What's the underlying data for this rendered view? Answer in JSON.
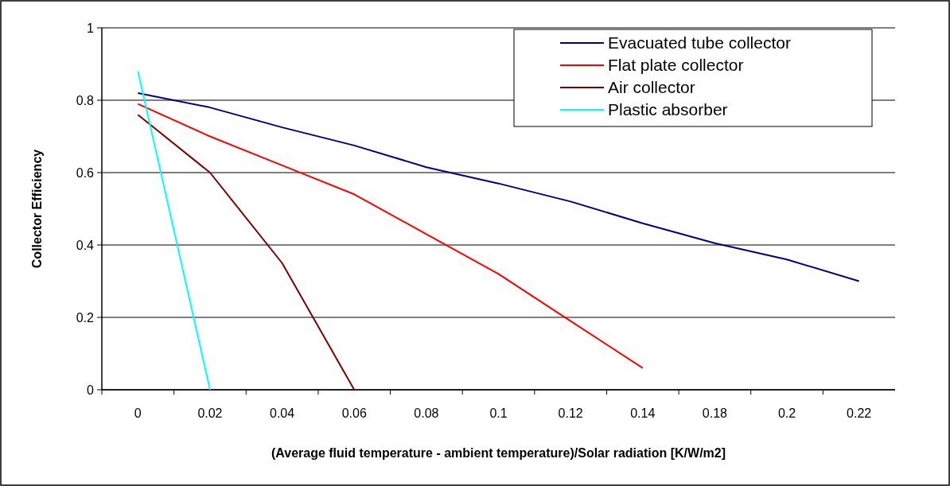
{
  "chart_data": {
    "type": "line",
    "xlabel": "(Average fluid temperature - ambient temperature)/Solar radiation [K/W/m2]",
    "ylabel": "Collector Efficiency",
    "categories": [
      "0",
      "0.02",
      "0.04",
      "0.06",
      "0.08",
      "0.1",
      "0.12",
      "0.14",
      "0.18",
      "0.2",
      "0.22"
    ],
    "series": [
      {
        "name": "Evacuated tube collector",
        "color": "#000080",
        "values": [
          0.82,
          0.78,
          0.725,
          0.675,
          0.615,
          0.57,
          0.52,
          0.46,
          0.405,
          0.36,
          0.3
        ]
      },
      {
        "name": "Flat plate collector",
        "color": "#ff0000",
        "values": [
          0.79,
          0.7,
          0.62,
          0.54,
          0.43,
          0.32,
          0.19,
          0.06,
          null,
          null,
          null
        ]
      },
      {
        "name": "Air collector",
        "color": "#800000",
        "values": [
          0.76,
          0.6,
          0.35,
          0,
          null,
          null,
          null,
          null,
          null,
          null,
          null
        ]
      },
      {
        "name": "Plastic absorber",
        "color": "#00ffff",
        "values": [
          0.88,
          0,
          null,
          null,
          null,
          null,
          null,
          null,
          null,
          null,
          null
        ]
      }
    ],
    "ylim": [
      0,
      1
    ],
    "yticks": [
      0,
      0.2,
      0.4,
      0.6,
      0.8,
      1
    ],
    "grid": "y",
    "legend": "top right",
    "marker": "none",
    "line_style": "solid"
  }
}
